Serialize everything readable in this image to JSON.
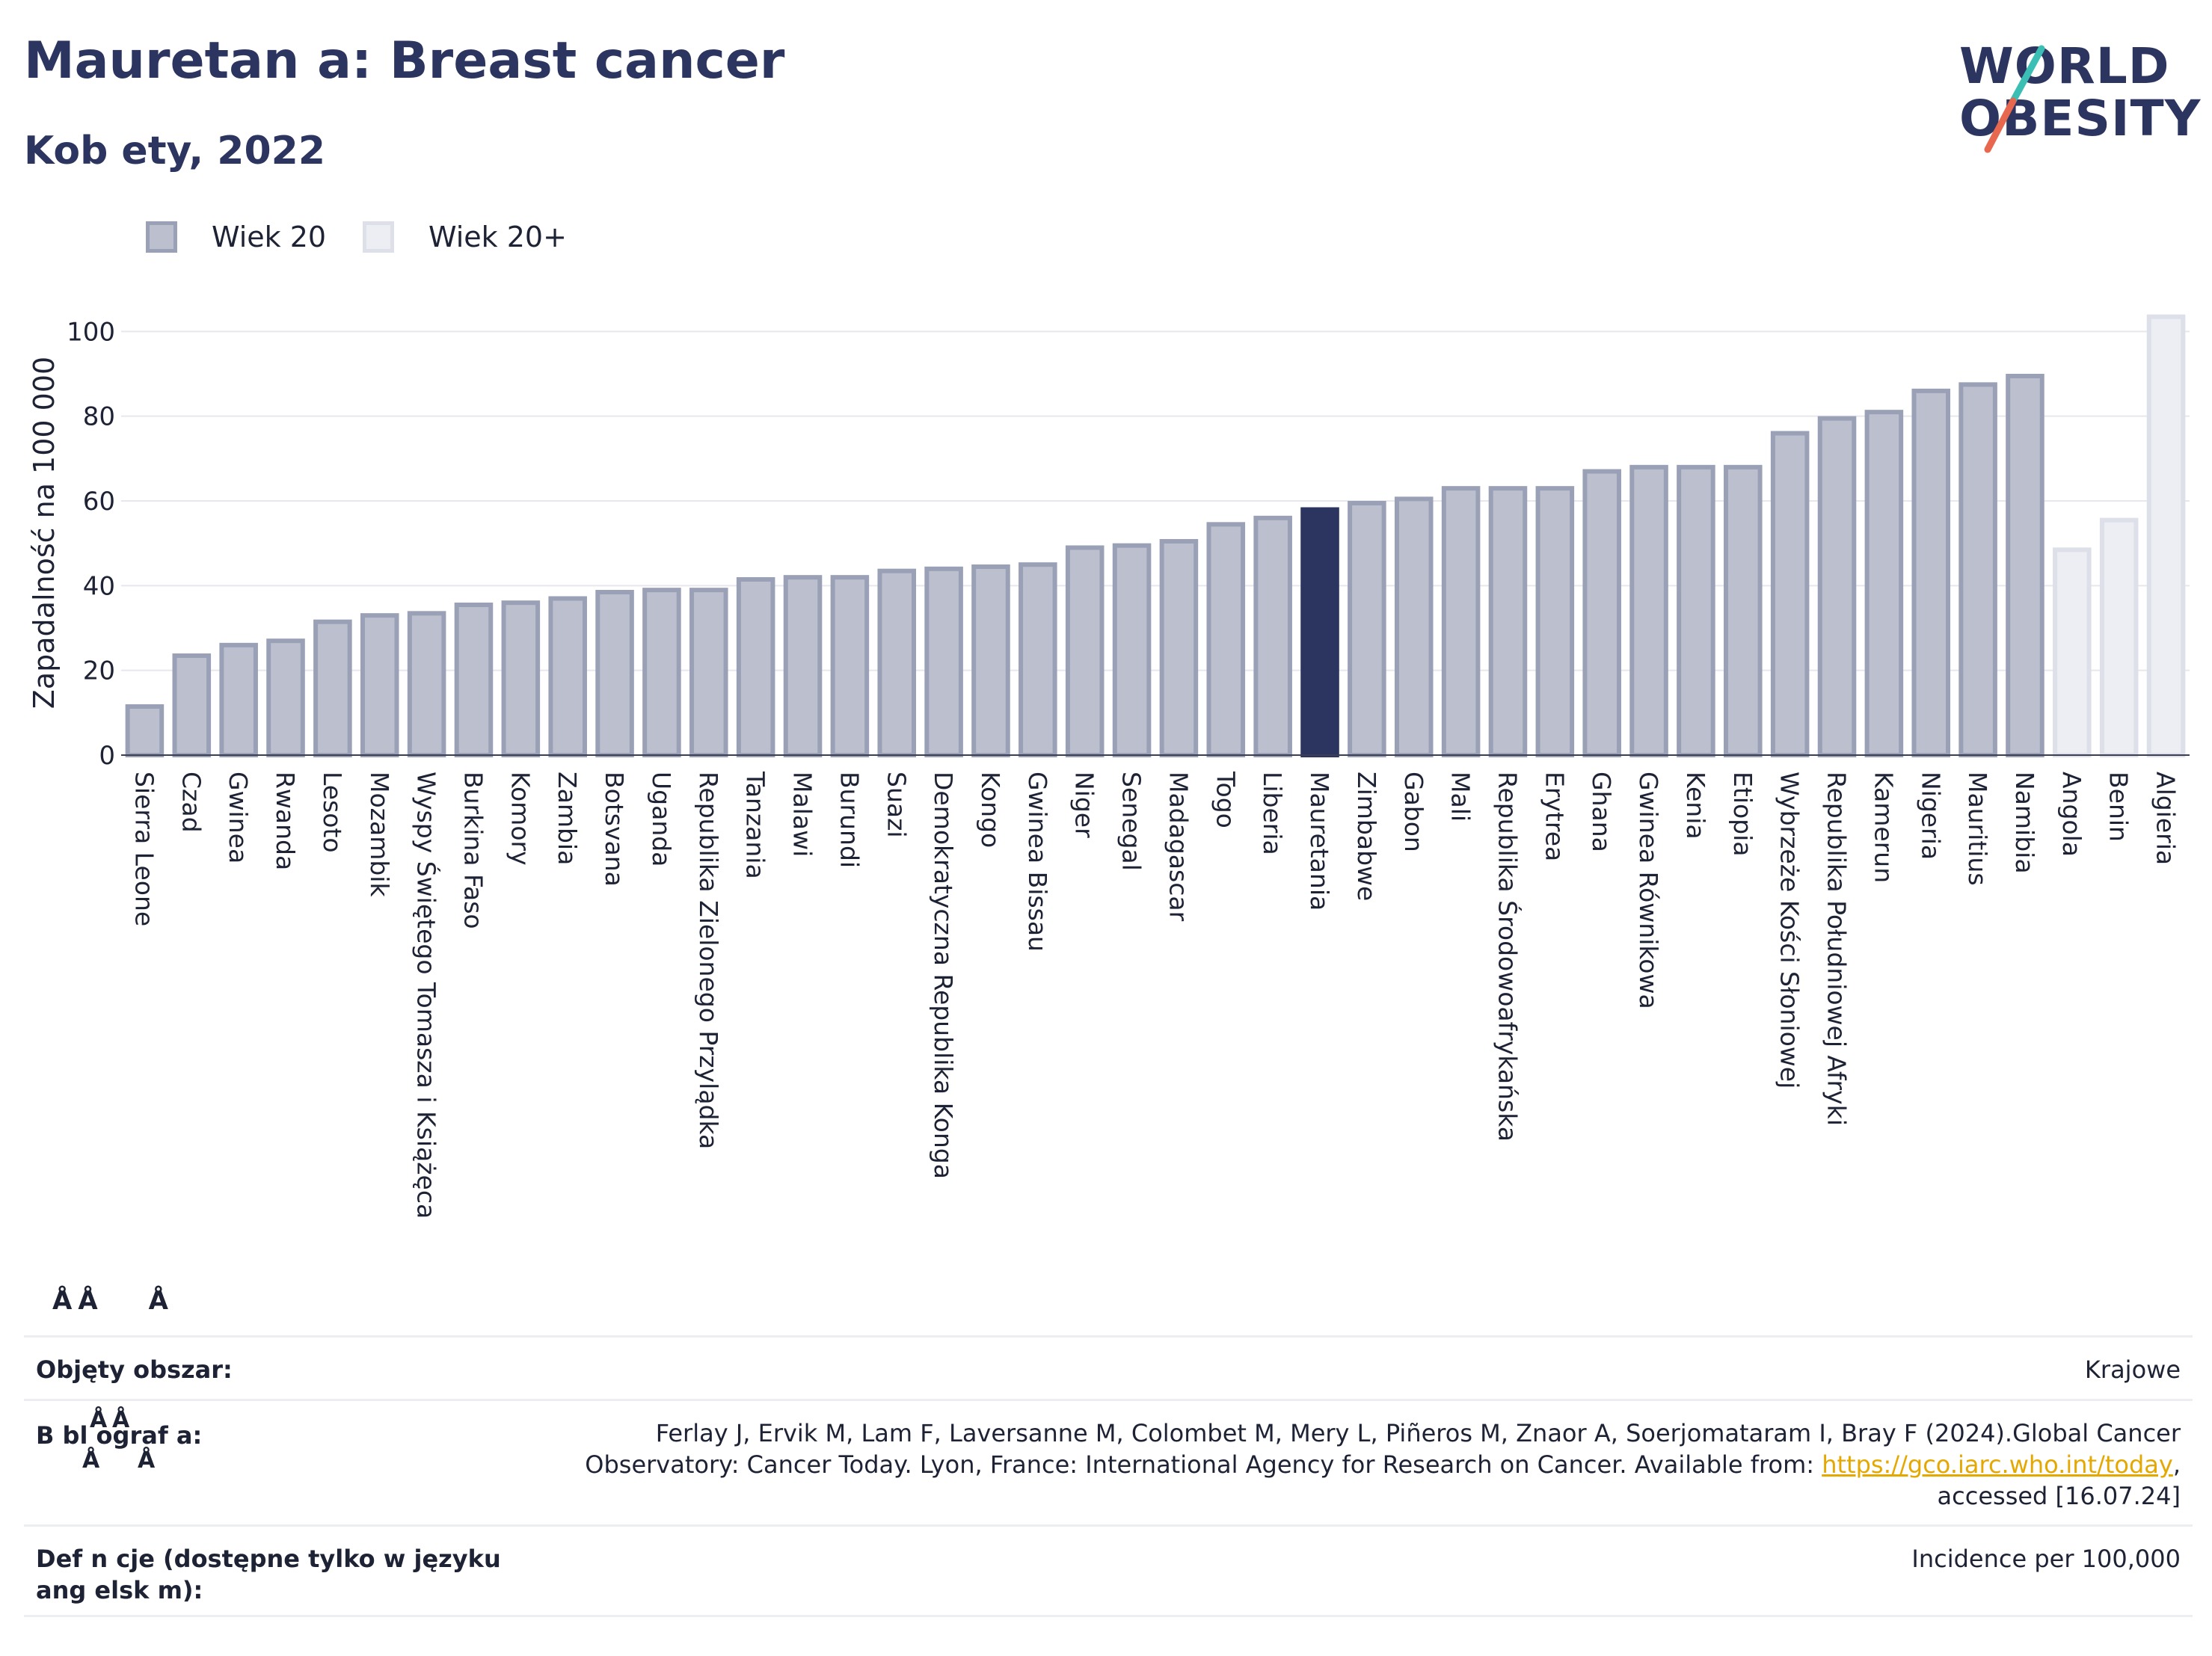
{
  "header": {
    "title": "Mauretan a: Breast cancer",
    "subtitle": "Kob ety, 2022"
  },
  "logo": {
    "line1": "WORLD",
    "line2": "OBESITY",
    "colors": {
      "text": "#2c3560",
      "slash_top": "#3bbfb5",
      "slash_bottom": "#e8684f"
    }
  },
  "legend": {
    "items": [
      {
        "label": "Wiek 20",
        "color": "#bcc0ce",
        "border": "#9aa0b6"
      },
      {
        "label": "Wiek 20+",
        "color": "#eceef3",
        "border": "#dde0e8"
      }
    ]
  },
  "chart_data": {
    "type": "bar",
    "ylabel": "Zapadalność na 100 000",
    "ylim": [
      0,
      105
    ],
    "yticks": [
      0,
      20,
      40,
      60,
      80,
      100
    ],
    "grid": true,
    "legend_position": "top-left",
    "colors": {
      "default": "#bcc0ce",
      "default_border": "#9aa0b6",
      "highlight": "#2c3560",
      "light": "#eceef3",
      "light_border": "#dde0e8"
    },
    "categories": [
      "Sierra Leone",
      "Czad",
      "Gwinea",
      "Rwanda",
      "Lesoto",
      "Mozambik",
      "Wyspy Świętego Tomasza i Książęca",
      "Burkina Faso",
      "Komory",
      "Zambia",
      "Botsvana",
      "Uganda",
      "Republika Zielonego Przylądka",
      "Tanzania",
      "Malawi",
      "Burundi",
      "Suazi",
      "Demokratyczna Republika Konga",
      "Kongo",
      "Gwinea Bissau",
      "Niger",
      "Senegal",
      "Madagascar",
      "Togo",
      "Liberia",
      "Mauretania",
      "Zimbabwe",
      "Gabon",
      "Mali",
      "Republika Środowoafrykańska",
      "Erytrea",
      "Ghana",
      "Gwinea Równikowa",
      "Kenia",
      "Etiopia",
      "Wybrzeże Kości Słoniowej",
      "Republika Południowej Afryki",
      "Kamerun",
      "Nigeria",
      "Mauritius",
      "Namibia",
      "Angola",
      "Benin",
      "Algieria"
    ],
    "values": [
      12,
      24,
      26.5,
      27.5,
      32,
      33.5,
      34,
      36,
      36.5,
      37.5,
      39,
      39.5,
      39.5,
      42,
      42.5,
      42.5,
      44,
      44.5,
      45,
      45.5,
      49.5,
      50,
      51,
      55,
      56.5,
      58.5,
      60,
      61,
      63.5,
      63.5,
      63.5,
      67.5,
      68.5,
      68.5,
      68.5,
      76.5,
      80,
      81.5,
      86.5,
      88,
      90,
      49,
      56,
      104
    ],
    "series_index": [
      0,
      0,
      0,
      0,
      0,
      0,
      0,
      0,
      0,
      0,
      0,
      0,
      0,
      0,
      0,
      0,
      0,
      0,
      0,
      0,
      0,
      0,
      0,
      0,
      0,
      0,
      0,
      0,
      0,
      0,
      0,
      0,
      0,
      0,
      0,
      0,
      0,
      0,
      0,
      0,
      0,
      1,
      1,
      1
    ],
    "highlight": "Mauretania"
  },
  "stray_marks": [
    "Å",
    "Å",
    "Å",
    "Å",
    "Å",
    "Å",
    "Å"
  ],
  "info": {
    "coverage_label": "Objęty obszar:",
    "coverage_value": "Krajowe",
    "bibliography_label": "B bl ograf a:",
    "bibliography_text1": "Ferlay J, Ervik M, Lam F, Laversanne M, Colombet M, Mery L, Piñeros M, Znaor A, Soerjomataram I, Bray F (2024).Global Cancer",
    "bibliography_text2": "Observatory: Cancer Today. Lyon, France: International Agency for Research on Cancer. Available from: ",
    "bibliography_link": "https://gco.iarc.who.int/today",
    "bibliography_text3": ",",
    "bibliography_text4": "accessed [16.07.24]",
    "definitions_label1": "Def n cje (dostępne tylko w języku",
    "definitions_label2": "ang elsk m):",
    "definitions_value": "Incidence per 100,000"
  }
}
